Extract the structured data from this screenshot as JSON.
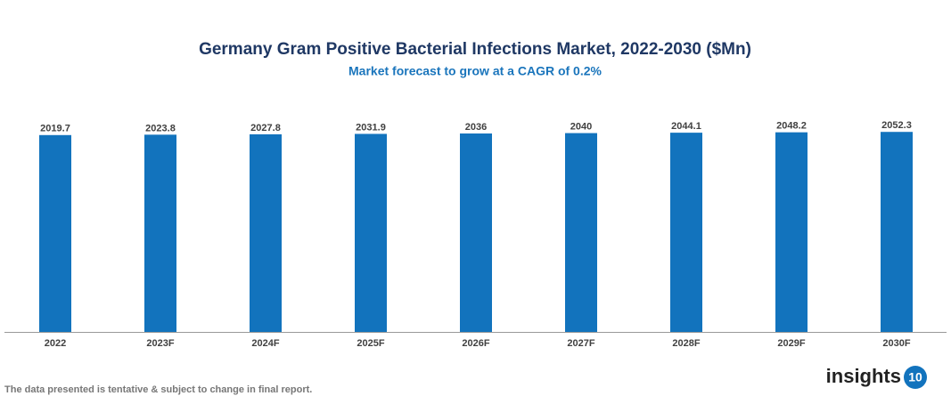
{
  "chart_data": {
    "type": "bar",
    "title": "Germany Gram Positive Bacterial Infections Market, 2022-2030 ($Mn)",
    "subtitle": "Market forecast to grow at a CAGR of 0.2%",
    "categories": [
      "2022",
      "2023F",
      "2024F",
      "2025F",
      "2026F",
      "2027F",
      "2028F",
      "2029F",
      "2030F"
    ],
    "values": [
      2019.7,
      2023.8,
      2027.8,
      2031.9,
      2036,
      2040,
      2044.1,
      2048.2,
      2052.3
    ],
    "color": "#1273bd",
    "ylim": [
      0,
      2100
    ],
    "footnote": "The data presented is tentative & subject to change in final report.",
    "logo_text": "insights",
    "logo_badge": "10"
  }
}
